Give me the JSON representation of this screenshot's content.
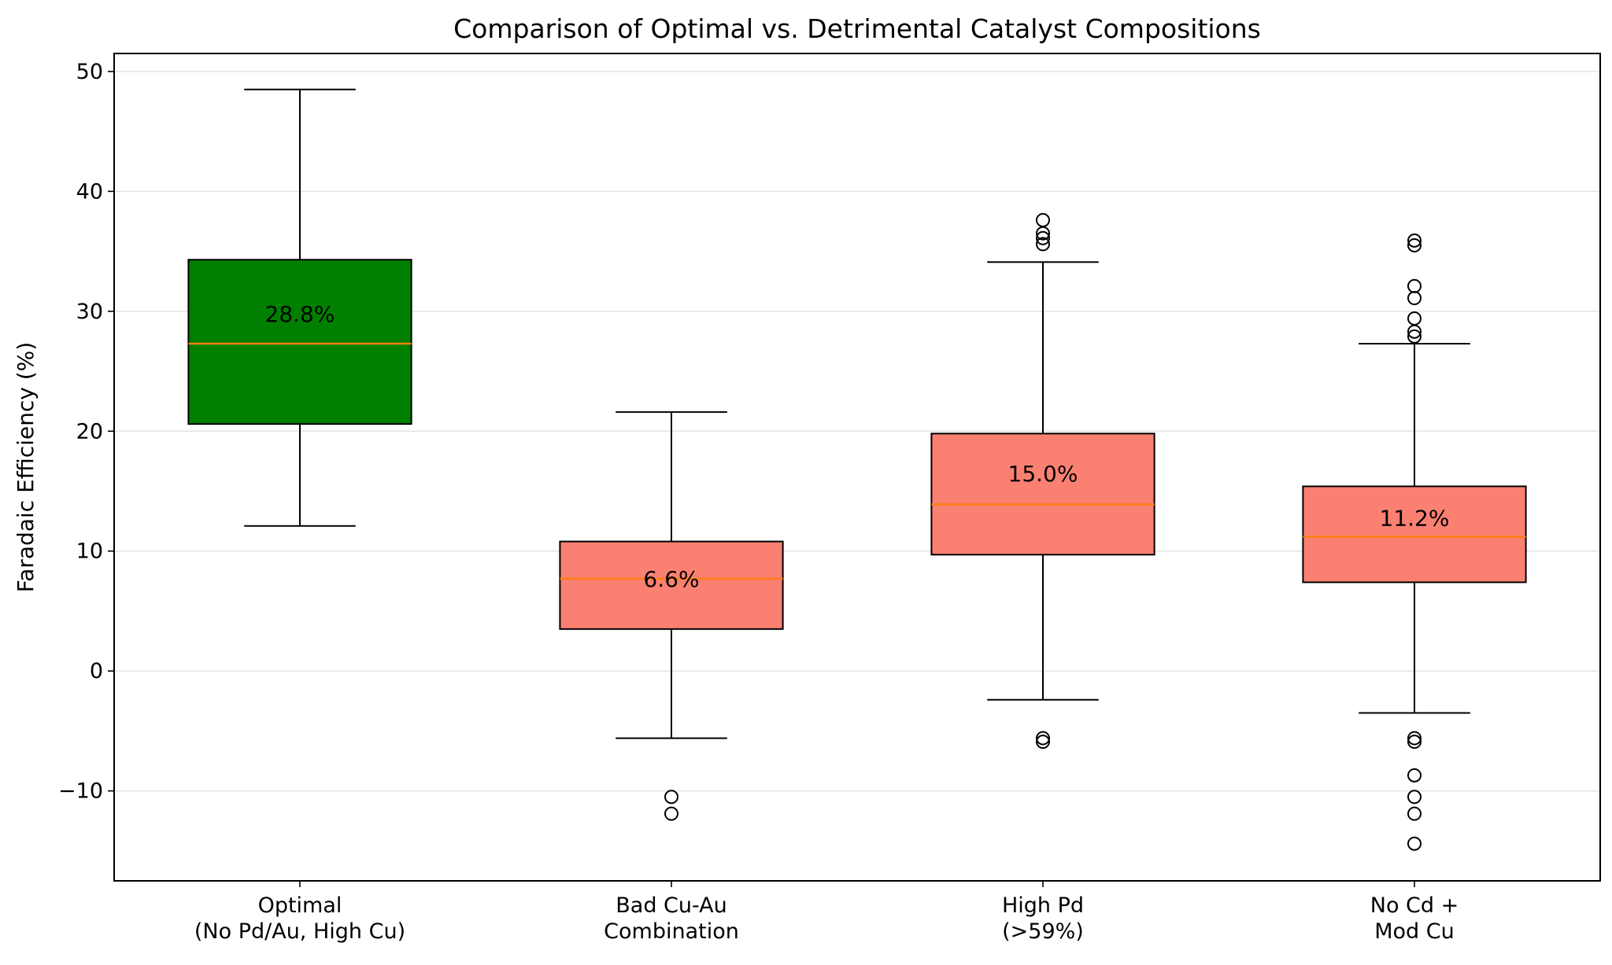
{
  "chart_data": {
    "type": "box",
    "title": "Comparison of Optimal vs. Detrimental Catalyst Compositions",
    "xlabel": "",
    "ylabel": "Faradaic Efficiency (%)",
    "ylim": [
      -17.5,
      51.5
    ],
    "yticks": [
      -10,
      0,
      10,
      20,
      30,
      40,
      50
    ],
    "yticklabels": [
      "−10",
      "0",
      "10",
      "20",
      "30",
      "40",
      "50"
    ],
    "grid": {
      "y": true,
      "x": false
    },
    "median_color": "#ff7f0e",
    "categories": [
      {
        "label_lines": [
          "Optimal",
          "(No Pd/Au, High Cu)"
        ],
        "color": "#008000",
        "whisker_low": 12.1,
        "q1": 20.6,
        "median": 27.3,
        "q3": 34.3,
        "whisker_high": 48.5,
        "mean_label": "28.8%",
        "outliers": []
      },
      {
        "label_lines": [
          "Bad Cu-Au",
          "Combination"
        ],
        "color": "#fa8072",
        "whisker_low": -5.6,
        "q1": 3.5,
        "median": 7.7,
        "q3": 10.8,
        "whisker_high": 21.6,
        "mean_label": "6.6%",
        "outliers": [
          -10.5,
          -11.9
        ]
      },
      {
        "label_lines": [
          "High Pd",
          "(>59%)"
        ],
        "color": "#fa8072",
        "whisker_low": -2.4,
        "q1": 9.7,
        "median": 13.9,
        "q3": 19.8,
        "whisker_high": 34.1,
        "mean_label": "15.0%",
        "outliers": [
          37.6,
          36.5,
          36.1,
          35.6,
          -5.6,
          -5.9
        ]
      },
      {
        "label_lines": [
          "No Cd +",
          "Mod Cu"
        ],
        "color": "#fa8072",
        "whisker_low": -3.5,
        "q1": 7.4,
        "median": 11.2,
        "q3": 15.4,
        "whisker_high": 27.3,
        "mean_label": "11.2%",
        "outliers": [
          35.9,
          35.5,
          32.1,
          31.1,
          29.4,
          28.3,
          27.9,
          -5.6,
          -5.9,
          -8.7,
          -10.5,
          -11.9,
          -14.4
        ]
      }
    ]
  }
}
